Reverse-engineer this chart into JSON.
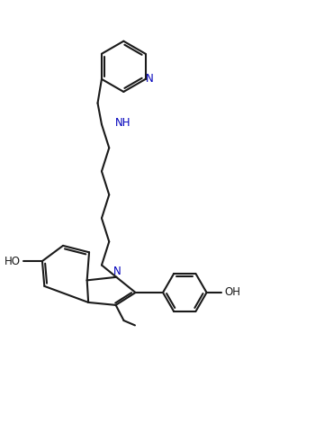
{
  "line_color": "#1a1a1a",
  "N_color": "#0000bb",
  "bg_color": "#ffffff",
  "lw": 1.5,
  "figsize": [
    3.6,
    4.91
  ],
  "dpi": 100,
  "xlim": [
    -1,
    11
  ],
  "ylim": [
    0,
    15
  ]
}
